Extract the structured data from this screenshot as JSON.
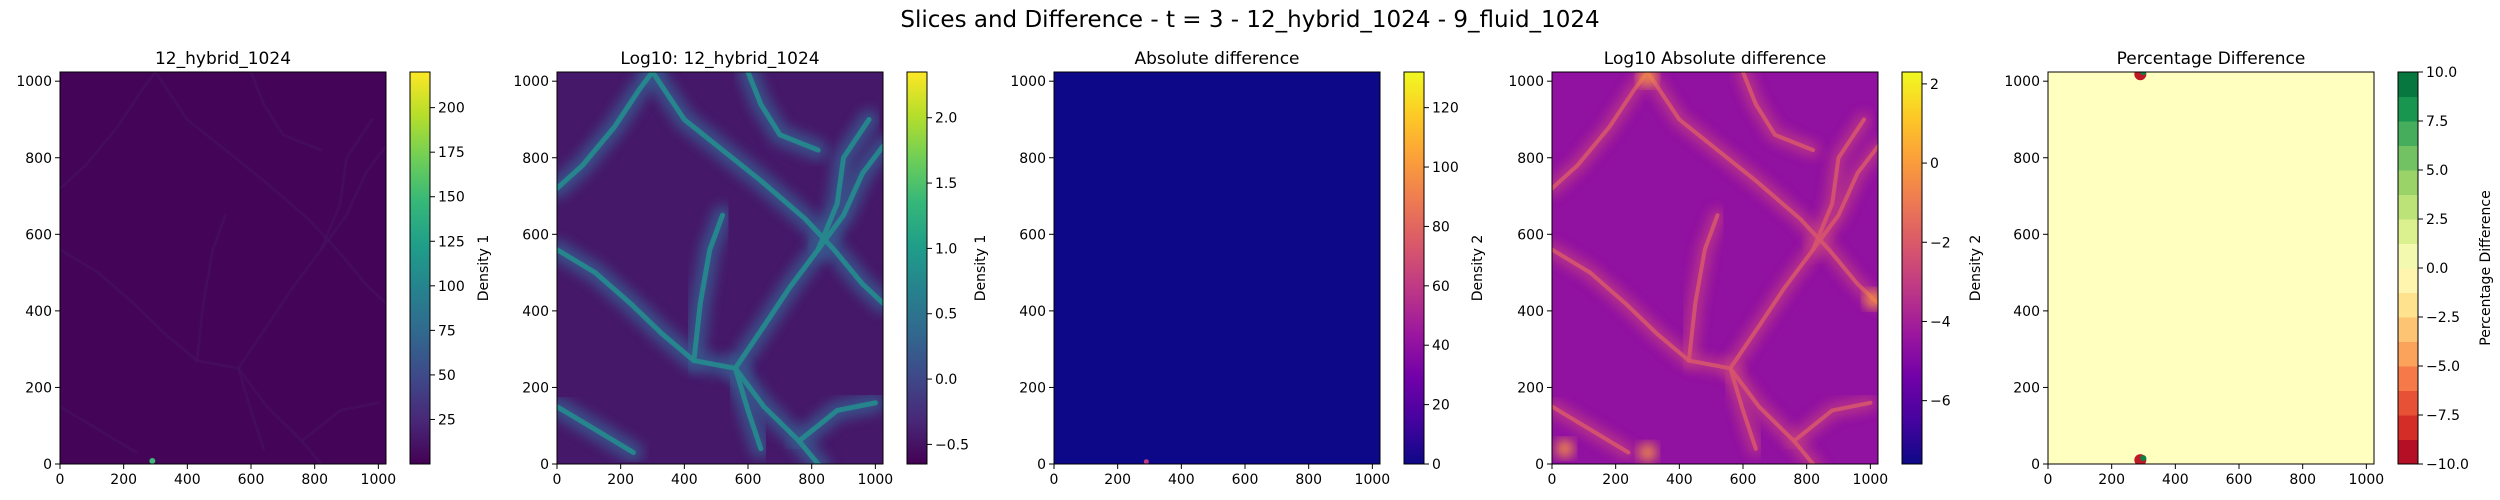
{
  "figure": {
    "suptitle": "Slices and Difference - t = 3 - 12_hybrid_1024 - 9_fluid_1024"
  },
  "colors": {
    "viridis": [
      "#440154",
      "#482878",
      "#3e4989",
      "#31688e",
      "#26828e",
      "#1f9e89",
      "#35b779",
      "#6ece58",
      "#b5de2b",
      "#fde725"
    ],
    "plasma": [
      "#0d0887",
      "#46039f",
      "#7201a8",
      "#9c179e",
      "#bd3786",
      "#d8576b",
      "#ed7953",
      "#fb9f3a",
      "#fdca26",
      "#f0f921"
    ],
    "rdylgn": [
      "#a50026",
      "#d73027",
      "#f46d43",
      "#fdae61",
      "#fee08b",
      "#ffffbf",
      "#d9ef8b",
      "#a6d96a",
      "#66bd63",
      "#1a9850",
      "#006837"
    ]
  },
  "chart_data": [
    {
      "type": "heatmap",
      "title": "12_hybrid_1024",
      "colormap": "viridis",
      "xlim": [
        0,
        1024
      ],
      "ylim": [
        0,
        1024
      ],
      "xticks": [
        "0",
        "200",
        "400",
        "600",
        "800",
        "1000"
      ],
      "yticks": [
        "0",
        "200",
        "400",
        "600",
        "800",
        "1000"
      ],
      "colorbar": {
        "label": "Density 1",
        "range": [
          0,
          220
        ],
        "ticks": [
          "25",
          "50",
          "75",
          "100",
          "125",
          "150",
          "175",
          "200"
        ],
        "tick_values": [
          25,
          50,
          75,
          100,
          125,
          150,
          175,
          200
        ]
      },
      "background_value": 2
    },
    {
      "type": "heatmap",
      "title": "Log10: 12_hybrid_1024",
      "colormap": "viridis",
      "xlim": [
        0,
        1024
      ],
      "ylim": [
        0,
        1024
      ],
      "xticks": [
        "0",
        "200",
        "400",
        "600",
        "800",
        "1000"
      ],
      "yticks": [
        "0",
        "200",
        "400",
        "600",
        "800",
        "1000"
      ],
      "colorbar": {
        "label": "Density 1",
        "range": [
          -0.65,
          2.35
        ],
        "ticks": [
          "−0.5",
          "0.0",
          "0.5",
          "1.0",
          "1.5",
          "2.0"
        ],
        "tick_values": [
          -0.5,
          0.0,
          0.5,
          1.0,
          1.5,
          2.0
        ]
      },
      "background_value": -0.45
    },
    {
      "type": "heatmap",
      "title": "Absolute difference",
      "colormap": "plasma",
      "xlim": [
        0,
        1024
      ],
      "ylim": [
        0,
        1024
      ],
      "xticks": [
        "0",
        "200",
        "400",
        "600",
        "800",
        "1000"
      ],
      "yticks": [
        "0",
        "200",
        "400",
        "600",
        "800",
        "1000"
      ],
      "colorbar": {
        "label": "Density 2",
        "range": [
          0,
          132
        ],
        "ticks": [
          "0",
          "20",
          "40",
          "60",
          "80",
          "100",
          "120"
        ],
        "tick_values": [
          0,
          20,
          40,
          60,
          80,
          100,
          120
        ]
      },
      "background_value": 0
    },
    {
      "type": "heatmap",
      "title": "Log10 Absolute difference",
      "colormap": "plasma",
      "xlim": [
        0,
        1024
      ],
      "ylim": [
        0,
        1024
      ],
      "xticks": [
        "0",
        "200",
        "400",
        "600",
        "800",
        "1000"
      ],
      "yticks": [
        "0",
        "200",
        "400",
        "600",
        "800",
        "1000"
      ],
      "colorbar": {
        "label": "Density 2",
        "range": [
          -7.6,
          2.3
        ],
        "ticks": [
          "−6",
          "−4",
          "−2",
          "0",
          "2"
        ],
        "tick_values": [
          -6,
          -4,
          -2,
          0,
          2
        ]
      },
      "background_value": -4.6
    },
    {
      "type": "heatmap",
      "title": "Percentage Difference",
      "colormap": "RdYlGn",
      "xlim": [
        0,
        1024
      ],
      "ylim": [
        0,
        1024
      ],
      "xticks": [
        "0",
        "200",
        "400",
        "600",
        "800",
        "1000"
      ],
      "yticks": [
        "0",
        "200",
        "400",
        "600",
        "800",
        "1000"
      ],
      "colorbar": {
        "label": "Percentage Difference",
        "range": [
          -10,
          10
        ],
        "ticks": [
          "−10.0",
          "−7.5",
          "−5.0",
          "−2.5",
          "0.0",
          "2.5",
          "5.0",
          "7.5",
          "10.0"
        ],
        "tick_values": [
          -10,
          -7.5,
          -5,
          -2.5,
          0,
          2.5,
          5,
          7.5,
          10
        ]
      },
      "background_value": 0
    }
  ]
}
